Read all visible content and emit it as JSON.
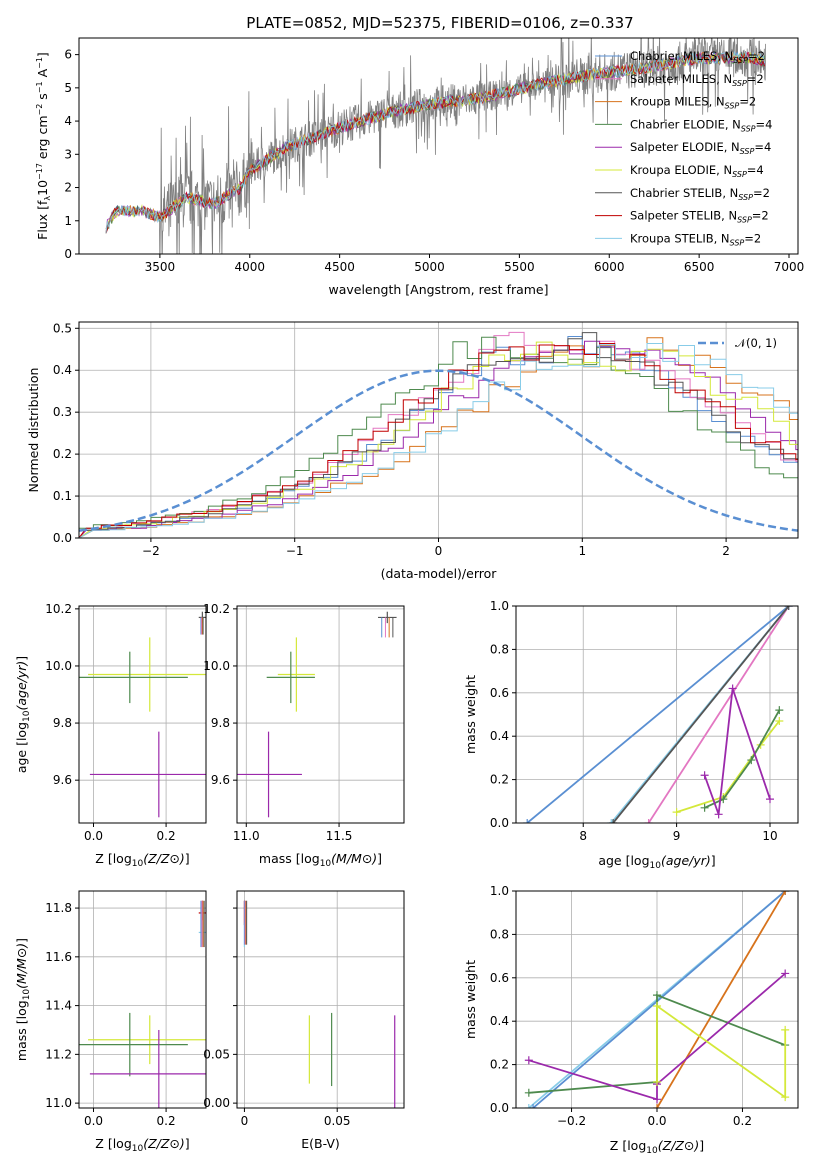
{
  "title": "PLATE=0852, MJD=52375, FIBERID=0106, z=0.337",
  "colors": {
    "Chabrier MILES": "#5a8fd2",
    "Salpeter MILES": "#e377c2",
    "Kroupa MILES": "#d7731c",
    "Chabrier ELODIE": "#4e8a4e",
    "Salpeter ELODIE": "#9b29ab",
    "Kroupa ELODIE": "#d4e83a",
    "Chabrier STELIB": "#555555",
    "Salpeter STELIB": "#c00000",
    "Kroupa STELIB": "#88cce8",
    "data": "#808080",
    "normal": "#5a8fd2",
    "grid": "#b0b0b0"
  },
  "chart_data": [
    {
      "type": "line",
      "xlabel": "wavelength [Angstrom, rest frame]",
      "ylabel": "Flux [f$_\\lambda$10$^{-17}$ erg cm$^{-2}$ s$^{-1}$ A$^{-1}$]",
      "ylabel_parts": [
        "Flux [f",
        "λ",
        "10",
        "−17",
        " erg cm",
        "−2",
        " s",
        "−1",
        " A",
        "−1",
        "]"
      ],
      "xlim": [
        3050,
        7050
      ],
      "ylim": [
        0,
        6.5
      ],
      "xticks": [
        3500,
        4000,
        4500,
        5000,
        5500,
        6000,
        6500,
        7000
      ],
      "yticks": [
        0,
        1,
        2,
        3,
        4,
        5,
        6
      ],
      "legend": [
        {
          "name": "Chabrier MILES",
          "label": "Chabrier MILES, N",
          "n": "=2"
        },
        {
          "name": "Salpeter MILES",
          "label": "Salpeter MILES, N",
          "n": "=2"
        },
        {
          "name": "Kroupa MILES",
          "label": "Kroupa MILES, N",
          "n": "=2"
        },
        {
          "name": "Chabrier ELODIE",
          "label": "Chabrier ELODIE, N",
          "n": "=4"
        },
        {
          "name": "Salpeter ELODIE",
          "label": "Salpeter ELODIE, N",
          "n": "=4"
        },
        {
          "name": "Kroupa ELODIE",
          "label": "Kroupa ELODIE, N",
          "n": "=4"
        },
        {
          "name": "Chabrier STELIB",
          "label": "Chabrier STELIB, N",
          "n": "=2"
        },
        {
          "name": "Salpeter STELIB",
          "label": "Salpeter STELIB, N",
          "n": "=2"
        },
        {
          "name": "Kroupa STELIB",
          "label": "Kroupa STELIB, N",
          "n": "=2"
        }
      ],
      "legend_sub": "SSP",
      "legend_loc": "right",
      "continuum": [
        [
          3200,
          0.8
        ],
        [
          3260,
          1.3
        ],
        [
          3400,
          1.3
        ],
        [
          3500,
          1.1
        ],
        [
          3650,
          1.7
        ],
        [
          3800,
          1.5
        ],
        [
          3950,
          2.0
        ],
        [
          4000,
          2.5
        ],
        [
          4200,
          3.2
        ],
        [
          4500,
          3.8
        ],
        [
          4800,
          4.3
        ],
        [
          5000,
          4.5
        ],
        [
          5300,
          4.7
        ],
        [
          5600,
          5.1
        ],
        [
          5900,
          5.4
        ],
        [
          6200,
          5.6
        ],
        [
          6500,
          5.9
        ],
        [
          6800,
          5.9
        ],
        [
          6870,
          5.8
        ]
      ]
    },
    {
      "type": "histogram",
      "xlabel": "(data-model)/error",
      "ylabel": "Normed distribution",
      "xlim": [
        -2.5,
        2.5
      ],
      "ylim": [
        0,
        0.515
      ],
      "xticks": [
        -2,
        -1,
        0,
        1,
        2
      ],
      "ytick_labels": [
        "0.0",
        "0.1",
        "0.2",
        "0.3",
        "0.4",
        "0.5"
      ],
      "legend": "𝒩(0, 1)",
      "legend_loc": "upper right",
      "bin_width": 0.1,
      "bin_start": -2.5,
      "profiles": {
        "Chabrier MILES": [
          0.02,
          0.02,
          0.025,
          0.025,
          0.03,
          0.035,
          0.04,
          0.05,
          0.05,
          0.06,
          0.065,
          0.075,
          0.085,
          0.1,
          0.11,
          0.125,
          0.135,
          0.15,
          0.17,
          0.195,
          0.21,
          0.24,
          0.265,
          0.29,
          0.32,
          0.355,
          0.38,
          0.4,
          0.42,
          0.44,
          0.43,
          0.42,
          0.44,
          0.45,
          0.46,
          0.46,
          0.45,
          0.44,
          0.43,
          0.41,
          0.39,
          0.36,
          0.34,
          0.31,
          0.29,
          0.26,
          0.24,
          0.22,
          0.2,
          0.18,
          0.16,
          0.14,
          0.13,
          0.12,
          0.1,
          0.09,
          0.08,
          0.07,
          0.06,
          0.055,
          0.05,
          0.045,
          0.04,
          0.035,
          0.03,
          0.03,
          0.03,
          0.025,
          0.025,
          0.02
        ],
        "Kroupa ELODIE": [
          0.025,
          0.03,
          0.03,
          0.035,
          0.04,
          0.05,
          0.055,
          0.06,
          0.065,
          0.075,
          0.085,
          0.1,
          0.11,
          0.12,
          0.14,
          0.16,
          0.18,
          0.205,
          0.23,
          0.26,
          0.28,
          0.31,
          0.34,
          0.36,
          0.39,
          0.42,
          0.45,
          0.46,
          0.47,
          0.45,
          0.44,
          0.43,
          0.42,
          0.42,
          0.44,
          0.44,
          0.43,
          0.41,
          0.39,
          0.36,
          0.34,
          0.32,
          0.3,
          0.27,
          0.24,
          0.22,
          0.2,
          0.18,
          0.16,
          0.14,
          0.12,
          0.11,
          0.1,
          0.09,
          0.08,
          0.07,
          0.06,
          0.055,
          0.05,
          0.045,
          0.04,
          0.035,
          0.03,
          0.025,
          0.025,
          0.02,
          0.02,
          0.02,
          0.02,
          0.015
        ]
      },
      "normal": {
        "mu": 0,
        "sigma": 1
      }
    },
    {
      "type": "errorbar",
      "xlabel": "Z [log10(Z/Z⊙)]",
      "ylabel": "age [log10(age/yr)]",
      "xlim": [
        -0.04,
        0.31
      ],
      "ylim": [
        9.45,
        10.21
      ],
      "xticks": [
        0.0,
        0.2
      ],
      "yticks": [
        9.6,
        9.8,
        10.0,
        10.2
      ],
      "points": [
        {
          "name": "Kroupa ELODIE",
          "x": 0.155,
          "xerr": 0.17,
          "y": 9.97,
          "yerr": 0.13
        },
        {
          "name": "Chabrier ELODIE",
          "x": 0.1,
          "xerr": 0.16,
          "y": 9.96,
          "yerr": 0.09
        },
        {
          "name": "Salpeter ELODIE",
          "x": 0.18,
          "xerr": 0.19,
          "y": 9.62,
          "yerr": 0.15
        },
        {
          "name": "Chabrier STELIB",
          "x": 0.3,
          "xerr": 0.01,
          "y": 10.17,
          "yerr": 0.02
        }
      ]
    },
    {
      "type": "errorbar",
      "xlabel": "mass [log10(M/M⊙)]",
      "ylabel": "",
      "xlim": [
        10.95,
        11.85
      ],
      "ylim": [
        9.45,
        10.21
      ],
      "xticks": [
        11.0,
        11.5
      ],
      "yticks": [
        9.6,
        9.8,
        10.0,
        10.2
      ],
      "points": [
        {
          "name": "Kroupa ELODIE",
          "x": 11.27,
          "xerr": 0.1,
          "y": 9.97,
          "yerr": 0.13
        },
        {
          "name": "Chabrier ELODIE",
          "x": 11.24,
          "xerr": 0.13,
          "y": 9.96,
          "yerr": 0.09
        },
        {
          "name": "Salpeter ELODIE",
          "x": 11.12,
          "xerr": 0.18,
          "y": 9.62,
          "yerr": 0.15
        },
        {
          "name": "Chabrier STELIB",
          "x": 11.76,
          "xerr": 0.05,
          "y": 10.17,
          "yerr": 0.02
        }
      ]
    },
    {
      "type": "line",
      "xlabel": "age [log10(age/yr)]",
      "ylabel": "mass weight",
      "xlim": [
        7.28,
        10.3
      ],
      "ylim": [
        0,
        1
      ],
      "xticks": [
        8,
        9,
        10
      ],
      "ytick_labels": [
        "0.0",
        "0.2",
        "0.4",
        "0.6",
        "0.8",
        "1.0"
      ],
      "series": [
        {
          "name": "Chabrier MILES",
          "x": [
            7.4,
            10.2
          ],
          "y": [
            0,
            1
          ]
        },
        {
          "name": "Salpeter MILES",
          "x": [
            8.7,
            10.2
          ],
          "y": [
            0,
            1
          ]
        },
        {
          "name": "Kroupa STELIB",
          "x": [
            8.3,
            10.2
          ],
          "y": [
            0,
            1
          ]
        },
        {
          "name": "Chabrier STELIB",
          "x": [
            8.32,
            10.2
          ],
          "y": [
            0,
            1
          ]
        },
        {
          "name": "Kroupa ELODIE",
          "x": [
            9.0,
            9.5,
            9.9,
            10.1
          ],
          "y": [
            0.05,
            0.12,
            0.36,
            0.47
          ]
        },
        {
          "name": "Chabrier ELODIE",
          "x": [
            9.3,
            9.5,
            9.8,
            10.1
          ],
          "y": [
            0.07,
            0.11,
            0.29,
            0.52
          ]
        },
        {
          "name": "Salpeter ELODIE",
          "x": [
            9.3,
            9.45,
            9.6,
            10.0
          ],
          "y": [
            0.22,
            0.04,
            0.62,
            0.11
          ]
        }
      ]
    },
    {
      "type": "errorbar",
      "xlabel": "Z [log10(Z/Z⊙)]",
      "ylabel": "mass [log10(M/M⊙)]",
      "xlim": [
        -0.04,
        0.31
      ],
      "ylim": [
        10.98,
        11.87
      ],
      "xticks": [
        0.0,
        0.2
      ],
      "yticks": [
        11.0,
        11.2,
        11.4,
        11.6,
        11.8
      ],
      "points": [
        {
          "name": "Kroupa ELODIE",
          "x": 0.155,
          "xerr": 0.17,
          "y": 11.26,
          "yerr": 0.1
        },
        {
          "name": "Chabrier ELODIE",
          "x": 0.1,
          "xerr": 0.16,
          "y": 11.24,
          "yerr": 0.13
        },
        {
          "name": "Salpeter ELODIE",
          "x": 0.18,
          "xerr": 0.19,
          "y": 11.12,
          "yerr": 0.18
        },
        {
          "name": "Salpeter STELIB",
          "x": 0.3,
          "xerr": 0.01,
          "y": 11.78,
          "yerr": 0.05
        },
        {
          "name": "Kroupa STELIB",
          "x": 0.3,
          "xerr": 0.01,
          "y": 11.7,
          "yerr": 0.05
        }
      ]
    },
    {
      "type": "errorbar",
      "xlabel": "E(B-V)",
      "ylabel": "",
      "xlim": [
        -0.004,
        0.086
      ],
      "ylim": [
        10.98,
        11.87
      ],
      "xticks": [
        0.0,
        0.05
      ],
      "ytick_labels": [
        "0.00",
        "0.05"
      ],
      "yticks": [
        11.0,
        11.2,
        11.4,
        11.6,
        11.8
      ],
      "points": [
        {
          "name": "Kroupa ELODIE",
          "x": 0.035,
          "xerr": 0,
          "y": 11.22,
          "yerr": 0.14
        },
        {
          "name": "Chabrier ELODIE",
          "x": 0.047,
          "xerr": 0,
          "y": 11.22,
          "yerr": 0.15
        },
        {
          "name": "Salpeter ELODIE",
          "x": 0.081,
          "xerr": 0,
          "y": 11.17,
          "yerr": 0.19
        },
        {
          "name": "Salpeter STELIB",
          "x": 0.0,
          "xerr": 0,
          "y": 11.78,
          "yerr": 0.05
        },
        {
          "name": "Kroupa STELIB",
          "x": 0.0,
          "xerr": 0,
          "y": 11.69,
          "yerr": 0.05
        }
      ]
    },
    {
      "type": "line",
      "xlabel": "Z [log10(Z/Z⊙)]",
      "ylabel": "mass weight",
      "xlim": [
        -0.33,
        0.33
      ],
      "ylim": [
        0,
        1
      ],
      "xticks": [
        -0.2,
        0.0,
        0.2
      ],
      "ytick_labels": [
        "0.0",
        "0.2",
        "0.4",
        "0.6",
        "0.8",
        "1.0"
      ],
      "series": [
        {
          "name": "Kroupa STELIB",
          "x": [
            -0.3,
            0.3
          ],
          "y": [
            0,
            1
          ]
        },
        {
          "name": "Chabrier MILES",
          "x": [
            -0.29,
            0.3
          ],
          "y": [
            0,
            1
          ]
        },
        {
          "name": "Kroupa MILES",
          "x": [
            0.0,
            0.3
          ],
          "y": [
            0,
            1
          ]
        },
        {
          "name": "Chabrier ELODIE",
          "x": [
            -0.3,
            0.0,
            0.0,
            0.3
          ],
          "y": [
            0.07,
            0.12,
            0.52,
            0.29
          ]
        },
        {
          "name": "Salpeter ELODIE",
          "x": [
            -0.3,
            0.0,
            0.0,
            0.3
          ],
          "y": [
            0.22,
            0.04,
            0.11,
            0.62
          ]
        },
        {
          "name": "Kroupa ELODIE",
          "x": [
            0.0,
            0.0,
            0.3,
            0.3
          ],
          "y": [
            0.12,
            0.47,
            0.05,
            0.36
          ]
        }
      ]
    }
  ]
}
